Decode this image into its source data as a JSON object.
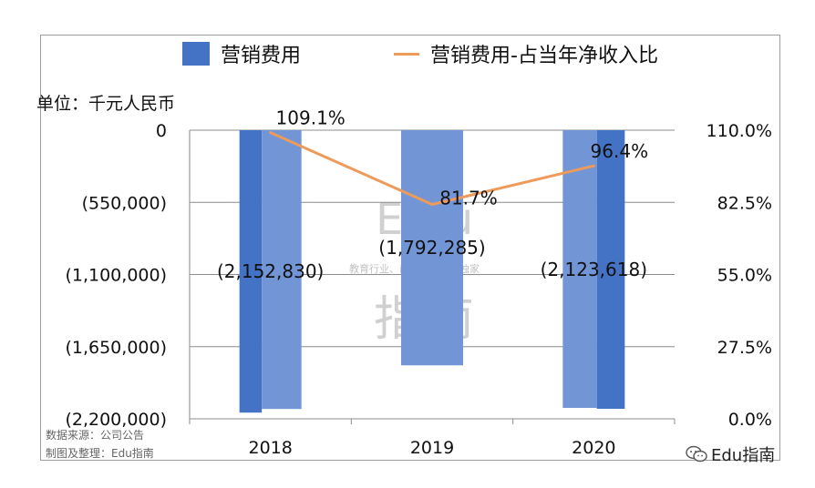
{
  "legend": {
    "bar_label": "营销费用",
    "line_label": "营销费用-占当年净收入比"
  },
  "unit_label": "单位：千元人民币",
  "source_line1": "数据来源：公司公告",
  "source_line2": "制图及整理：Edu指南",
  "watermark": {
    "big": "Edu",
    "tagline": "教育行业、前沿、深度、独家",
    "cn": "指南"
  },
  "brand": "Edu指南",
  "colors": {
    "bar_dark": "#4472c4",
    "bar_light": "#7295d6",
    "line": "#ed9a5a",
    "axis": "#8c8c8c"
  },
  "chart_data": {
    "type": "bar+line",
    "categories": [
      "2018",
      "2019",
      "2020"
    ],
    "series": [
      {
        "name": "营销费用",
        "values": [
          -2152830,
          -1792285,
          -2123618
        ],
        "labels": [
          "(2,152,830)",
          "(1,792,285)",
          "(2,123,618)"
        ]
      },
      {
        "name": "营销费用-占当年净收入比",
        "values": [
          1.091,
          0.817,
          0.964
        ],
        "labels": [
          "109.1%",
          "81.7%",
          "96.4%"
        ]
      }
    ],
    "y_left": {
      "ticks": [
        0,
        -550000,
        -1100000,
        -1650000,
        -2200000
      ],
      "tick_labels": [
        "0",
        "(550,000)",
        "(1,100,000)",
        "(1,650,000)",
        "(2,200,000)"
      ],
      "range": [
        -2200000,
        0
      ]
    },
    "y_right": {
      "ticks": [
        1.1,
        0.825,
        0.55,
        0.275,
        0.0
      ],
      "tick_labels": [
        "110.0%",
        "82.5%",
        "55.0%",
        "27.5%",
        "0.0%"
      ],
      "range": [
        0,
        1.1
      ]
    },
    "grid": true
  }
}
